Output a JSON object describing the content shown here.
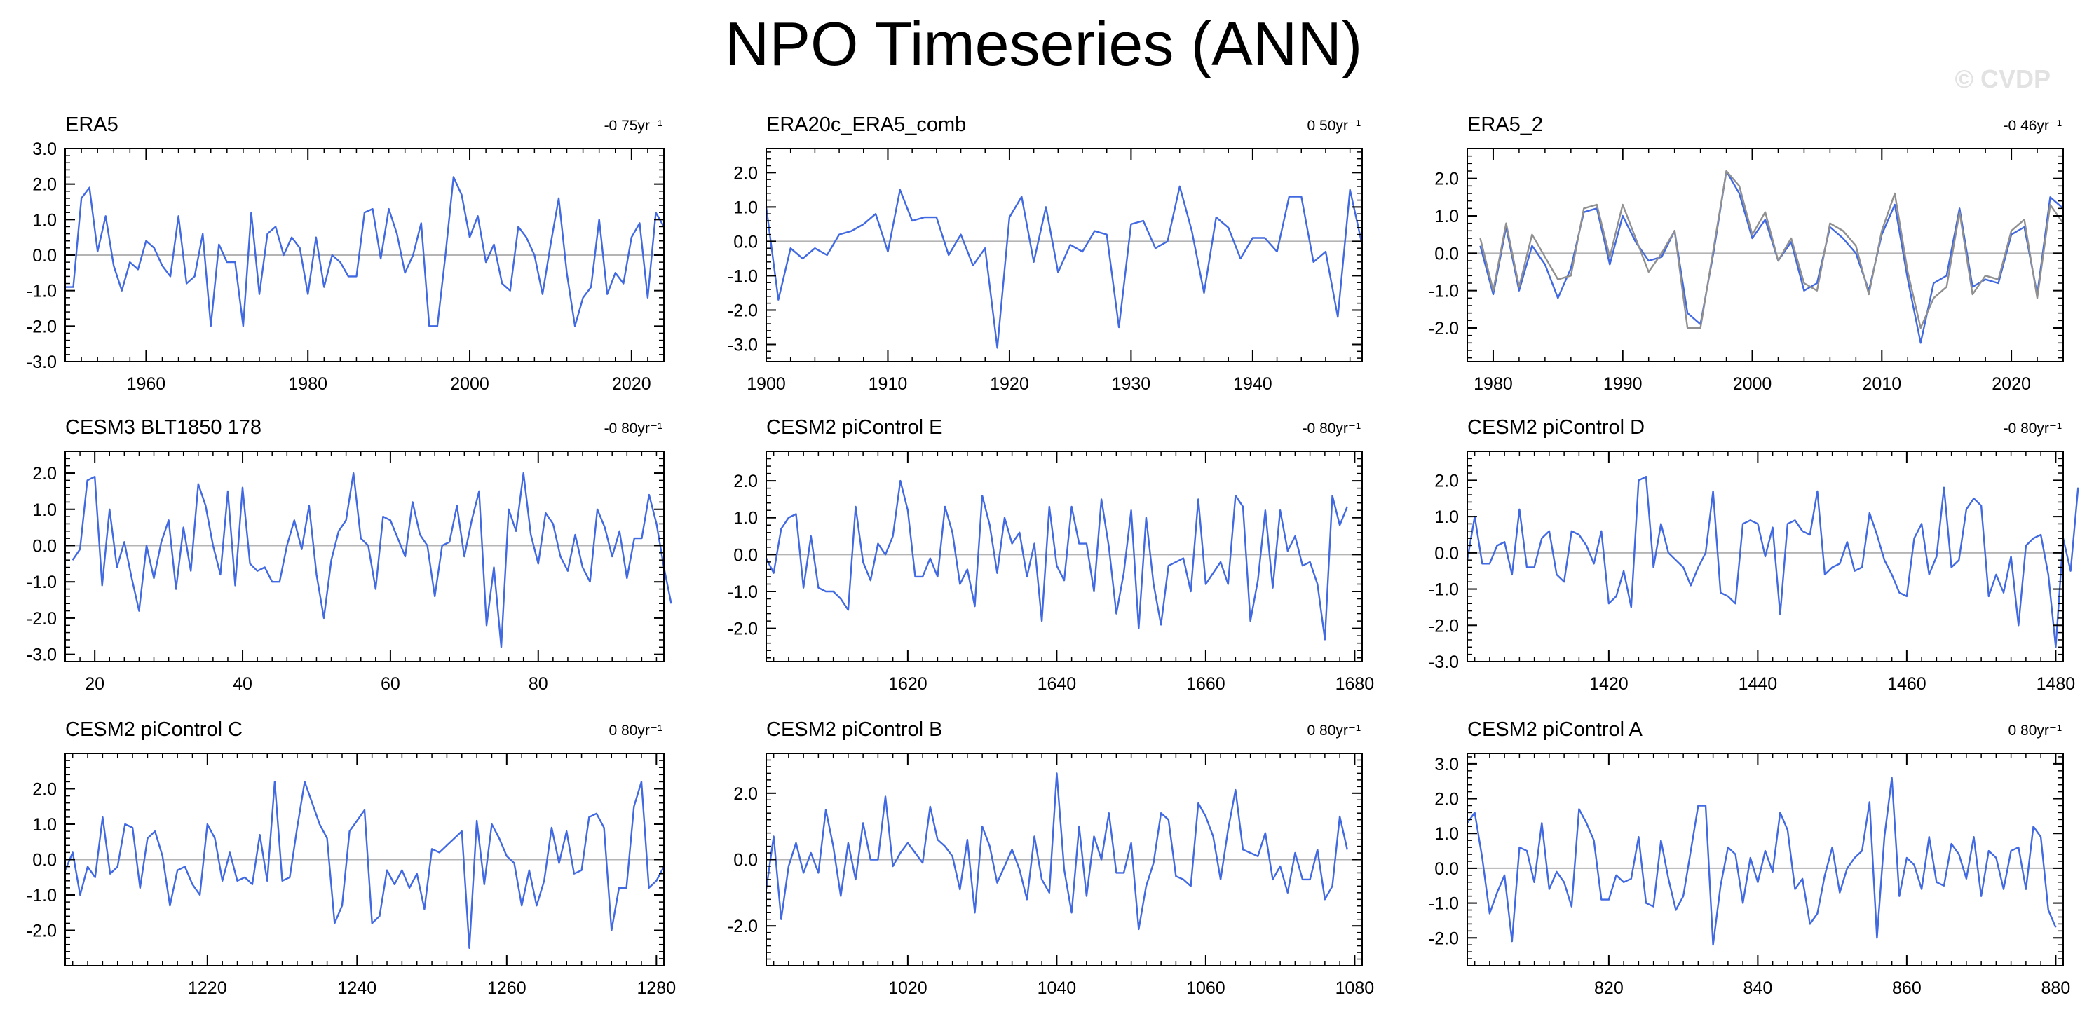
{
  "title": "NPO Timeseries (ANN)",
  "watermark": "© CVDP",
  "colors": {
    "line": "#4169e1",
    "ref_line": "#909090",
    "axis": "#000000",
    "zero": "#b4b4b4"
  },
  "chart_data": [
    {
      "type": "line",
      "title": "ERA5",
      "trend": "-0 75yr⁻¹",
      "xlim": [
        1950,
        2024
      ],
      "ylim": [
        -3.0,
        3.0
      ],
      "xticks": [
        1960,
        1980,
        2000,
        2020
      ],
      "yticks": [
        "3.0",
        "2.0",
        "1.0",
        "0.0",
        "-1.0",
        "-2.0",
        "-3.0"
      ],
      "x_start": 1950,
      "series": [
        {
          "values": [
            -0.9,
            -0.9,
            1.6,
            1.9,
            0.1,
            1.1,
            -0.3,
            -1.0,
            -0.2,
            -0.4,
            0.4,
            0.2,
            -0.3,
            -0.6,
            1.1,
            -0.8,
            -0.6,
            0.6,
            -2.0,
            0.3,
            -0.2,
            -0.2,
            -2.0,
            1.2,
            -1.1,
            0.6,
            0.8,
            0.0,
            0.5,
            0.2,
            -1.1,
            0.5,
            -0.9,
            0.0,
            -0.2,
            -0.6,
            -0.6,
            1.2,
            1.3,
            -0.1,
            1.3,
            0.6,
            -0.5,
            0.0,
            0.9,
            -2.0,
            -2.0,
            0.0,
            2.2,
            1.7,
            0.5,
            1.1,
            -0.2,
            0.3,
            -0.8,
            -1.0,
            0.8,
            0.5,
            0.0,
            -1.1,
            0.3,
            1.6,
            -0.5,
            -2.0,
            -1.2,
            -0.9,
            1.0,
            -1.1,
            -0.5,
            -0.8,
            0.5,
            0.9,
            -1.2,
            1.2,
            0.8
          ]
        }
      ]
    },
    {
      "type": "line",
      "title": "ERA20c_ERA5_comb",
      "trend": "0 50yr⁻¹",
      "xlim": [
        1900,
        1949
      ],
      "ylim": [
        -3.5,
        2.7
      ],
      "xticks": [
        1900,
        1910,
        1920,
        1930,
        1940
      ],
      "yticks": [
        "2.0",
        "1.0",
        "0.0",
        "-1.0",
        "-2.0",
        "-3.0"
      ],
      "x_start": 1900,
      "series": [
        {
          "values": [
            1.0,
            -1.7,
            -0.2,
            -0.5,
            -0.2,
            -0.4,
            0.2,
            0.3,
            0.5,
            0.8,
            -0.3,
            1.5,
            0.6,
            0.7,
            0.7,
            -0.4,
            0.2,
            -0.7,
            -0.2,
            -3.1,
            0.7,
            1.3,
            -0.6,
            1.0,
            -0.9,
            -0.1,
            -0.3,
            0.3,
            0.2,
            -2.5,
            0.5,
            0.6,
            -0.2,
            0.0,
            1.6,
            0.3,
            -1.5,
            0.7,
            0.4,
            -0.5,
            0.1,
            0.1,
            -0.3,
            1.3,
            1.3,
            -0.6,
            -0.3,
            -2.2,
            1.5,
            -0.1
          ]
        }
      ]
    },
    {
      "type": "line",
      "title": "ERA5_2",
      "trend": "-0 46yr⁻¹",
      "xlim": [
        1978,
        2024
      ],
      "ylim": [
        -2.9,
        2.8
      ],
      "xticks": [
        1980,
        1990,
        2000,
        2010,
        2020
      ],
      "yticks": [
        "2.0",
        "1.0",
        "0.0",
        "-1.0",
        "-2.0"
      ],
      "x_start": 1979,
      "series": [
        {
          "name": "",
          "values": [
            0.2,
            -1.1,
            0.7,
            -1.0,
            0.2,
            -0.3,
            -1.2,
            -0.4,
            1.1,
            1.2,
            -0.3,
            1.0,
            0.3,
            -0.2,
            -0.1,
            0.6,
            -1.6,
            -1.9,
            0.0,
            2.2,
            1.6,
            0.4,
            0.9,
            -0.2,
            0.3,
            -1.0,
            -0.8,
            0.7,
            0.4,
            0.0,
            -1.0,
            0.5,
            1.3,
            -0.7,
            -2.4,
            -0.8,
            -0.6,
            1.2,
            -0.9,
            -0.7,
            -0.8,
            0.5,
            0.7,
            -1.1,
            1.5,
            1.2
          ]
        },
        {
          "name": "",
          "values": [
            0.4,
            -1.0,
            0.8,
            -0.9,
            0.5,
            -0.1,
            -0.7,
            -0.6,
            1.2,
            1.3,
            -0.1,
            1.3,
            0.4,
            -0.5,
            0.0,
            0.6,
            -2.0,
            -2.0,
            0.1,
            2.2,
            1.8,
            0.5,
            1.1,
            -0.2,
            0.4,
            -0.8,
            -1.0,
            0.8,
            0.6,
            0.2,
            -1.1,
            0.6,
            1.6,
            -0.5,
            -2.0,
            -1.2,
            -0.9,
            1.1,
            -1.1,
            -0.6,
            -0.7,
            0.6,
            0.9,
            -1.2,
            1.3,
            0.8
          ]
        }
      ]
    },
    {
      "type": "line",
      "title": "CESM3 BLT1850 178",
      "trend": "-0 80yr⁻¹",
      "xlim": [
        16,
        97
      ],
      "ylim": [
        -3.2,
        2.6
      ],
      "xticks": [
        20,
        40,
        60,
        80
      ],
      "yticks": [
        "2.0",
        "1.0",
        "0.0",
        "-1.0",
        "-2.0",
        "-3.0"
      ],
      "x_start": 17,
      "series": [
        {
          "values": [
            -0.4,
            -0.1,
            1.8,
            1.9,
            -1.1,
            1.0,
            -0.6,
            0.1,
            -0.9,
            -1.8,
            0.0,
            -0.9,
            0.1,
            0.7,
            -1.2,
            0.5,
            -0.7,
            1.7,
            1.1,
            0.0,
            -0.8,
            1.5,
            -1.1,
            1.6,
            -0.5,
            -0.7,
            -0.6,
            -1.0,
            -1.0,
            0.0,
            0.7,
            -0.1,
            1.1,
            -0.8,
            -2.0,
            -0.4,
            0.4,
            0.7,
            2.0,
            0.2,
            0.0,
            -1.2,
            0.8,
            0.7,
            0.2,
            -0.3,
            1.2,
            0.3,
            0.0,
            -1.4,
            0.0,
            0.1,
            1.1,
            -0.3,
            0.7,
            1.5,
            -2.2,
            -0.6,
            -2.8,
            1.0,
            0.4,
            2.0,
            0.3,
            -0.5,
            0.9,
            0.6,
            -0.3,
            -0.7,
            0.3,
            -0.6,
            -1.0,
            1.0,
            0.5,
            -0.3,
            0.4,
            -0.9,
            0.2,
            0.2,
            1.4,
            0.6,
            -0.6,
            -1.6
          ]
        }
      ]
    },
    {
      "type": "line",
      "title": "CESM2 piControl E",
      "trend": "-0 80yr⁻¹",
      "xlim": [
        1601,
        1681
      ],
      "ylim": [
        -2.9,
        2.8
      ],
      "xticks": [
        1620,
        1640,
        1660,
        1680
      ],
      "yticks": [
        "2.0",
        "1.0",
        "0.0",
        "-1.0",
        "-2.0"
      ],
      "x_start": 1601,
      "series": [
        {
          "values": [
            -0.1,
            -0.5,
            0.7,
            1.0,
            1.1,
            -0.9,
            0.5,
            -0.9,
            -1.0,
            -1.0,
            -1.2,
            -1.5,
            1.3,
            -0.2,
            -0.7,
            0.3,
            0.0,
            0.5,
            2.0,
            1.2,
            -0.6,
            -0.6,
            -0.1,
            -0.6,
            1.3,
            0.6,
            -0.8,
            -0.4,
            -1.4,
            1.6,
            0.8,
            -0.5,
            1.0,
            0.3,
            0.6,
            -0.6,
            0.3,
            -1.8,
            1.3,
            -0.3,
            -0.7,
            1.3,
            0.3,
            0.3,
            -1.0,
            1.5,
            0.2,
            -1.6,
            -0.5,
            1.2,
            -2.0,
            1.0,
            -0.8,
            -1.9,
            -0.3,
            -0.2,
            -0.1,
            -1.0,
            1.5,
            -0.8,
            -0.5,
            -0.2,
            -0.8,
            1.6,
            1.3,
            -1.8,
            -0.7,
            1.2,
            -0.9,
            1.2,
            0.1,
            0.5,
            -0.3,
            -0.2,
            -0.8,
            -2.3,
            1.6,
            0.8,
            1.3
          ]
        }
      ]
    },
    {
      "type": "line",
      "title": "CESM2 piControl D",
      "trend": "-0 80yr⁻¹",
      "xlim": [
        1401,
        1481
      ],
      "ylim": [
        -3.0,
        2.8
      ],
      "xticks": [
        1420,
        1440,
        1460,
        1480
      ],
      "yticks": [
        "2.0",
        "1.0",
        "0.0",
        "-1.0",
        "-2.0",
        "-3.0"
      ],
      "x_start": 1401,
      "series": [
        {
          "values": [
            -0.2,
            1.0,
            -0.3,
            -0.3,
            0.2,
            0.3,
            -0.6,
            1.2,
            -0.4,
            -0.4,
            0.4,
            0.6,
            -0.6,
            -0.8,
            0.6,
            0.5,
            0.2,
            -0.3,
            0.6,
            -1.4,
            -1.2,
            -0.5,
            -1.5,
            2.0,
            2.1,
            -0.4,
            0.8,
            0.0,
            -0.2,
            -0.4,
            -0.9,
            -0.4,
            0.0,
            1.7,
            -1.1,
            -1.2,
            -1.4,
            0.8,
            0.9,
            0.8,
            -0.1,
            0.7,
            -1.7,
            0.8,
            0.9,
            0.6,
            0.5,
            1.7,
            -0.6,
            -0.4,
            -0.3,
            0.3,
            -0.5,
            -0.4,
            1.1,
            0.5,
            -0.2,
            -0.6,
            -1.1,
            -1.2,
            0.4,
            0.8,
            -0.6,
            -0.1,
            1.8,
            -0.4,
            -0.2,
            1.2,
            1.5,
            1.3,
            -1.2,
            -0.6,
            -1.1,
            -0.1,
            -2.0,
            0.2,
            0.4,
            0.5,
            -0.6,
            -2.6,
            0.4,
            -0.5,
            1.8
          ]
        }
      ]
    },
    {
      "type": "line",
      "title": "CESM2 piControl C",
      "trend": "0 80yr⁻¹",
      "xlim": [
        1201,
        1281
      ],
      "ylim": [
        -3.0,
        3.0
      ],
      "xticks": [
        1220,
        1240,
        1260,
        1280
      ],
      "yticks": [
        "2.0",
        "1.0",
        "0.0",
        "-1.0",
        "-2.0"
      ],
      "x_start": 1201,
      "series": [
        {
          "values": [
            -0.3,
            0.2,
            -1.0,
            -0.2,
            -0.5,
            1.2,
            -0.4,
            -0.2,
            1.0,
            0.9,
            -0.8,
            0.6,
            0.8,
            0.1,
            -1.3,
            -0.3,
            -0.2,
            -0.7,
            -1.0,
            1.0,
            0.6,
            -0.6,
            0.2,
            -0.6,
            -0.5,
            -0.7,
            0.7,
            -0.6,
            2.2,
            -0.6,
            -0.5,
            0.9,
            2.2,
            1.6,
            1.0,
            0.6,
            -1.8,
            -1.3,
            0.8,
            1.1,
            1.4,
            -1.8,
            -1.6,
            -0.3,
            -0.7,
            -0.3,
            -0.8,
            -0.4,
            -1.4,
            0.3,
            0.2,
            0.4,
            0.6,
            0.8,
            -2.5,
            1.1,
            -0.7,
            1.0,
            0.6,
            0.1,
            -0.1,
            -1.3,
            -0.3,
            -1.3,
            -0.6,
            0.9,
            -0.1,
            0.8,
            -0.4,
            -0.3,
            1.2,
            1.3,
            0.9,
            -2.0,
            -0.8,
            -0.8,
            1.5,
            2.2,
            -0.8,
            -0.6,
            -0.2
          ]
        }
      ]
    },
    {
      "type": "line",
      "title": "CESM2 piControl B",
      "trend": "0 80yr⁻¹",
      "xlim": [
        1001,
        1081
      ],
      "ylim": [
        -3.2,
        3.2
      ],
      "xticks": [
        1020,
        1040,
        1060,
        1080
      ],
      "yticks": [
        "2.0",
        "0.0",
        "-2.0"
      ],
      "x_start": 1001,
      "series": [
        {
          "values": [
            -0.9,
            0.7,
            -1.8,
            -0.2,
            0.5,
            -0.4,
            0.2,
            -0.4,
            1.5,
            0.4,
            -1.1,
            0.5,
            -0.6,
            1.1,
            0.0,
            0.0,
            1.9,
            -0.2,
            0.2,
            0.5,
            0.2,
            -0.1,
            1.6,
            0.6,
            0.4,
            0.1,
            -0.9,
            0.6,
            -1.6,
            1.0,
            0.4,
            -0.7,
            -0.2,
            0.3,
            -0.3,
            -1.2,
            0.7,
            -0.6,
            -1.0,
            2.6,
            -0.3,
            -1.6,
            1.0,
            -1.1,
            0.7,
            0.0,
            1.4,
            -0.4,
            -0.4,
            0.5,
            -2.1,
            -0.8,
            -0.1,
            1.4,
            1.2,
            -0.5,
            -0.6,
            -0.8,
            1.7,
            1.3,
            0.7,
            -0.6,
            0.9,
            2.1,
            0.3,
            0.2,
            0.1,
            0.8,
            -0.6,
            -0.2,
            -1.0,
            0.2,
            -0.6,
            -0.6,
            0.3,
            -1.2,
            -0.8,
            1.3,
            0.3
          ]
        }
      ]
    },
    {
      "type": "line",
      "title": "CESM2 piControl A",
      "trend": "0 80yr⁻¹",
      "xlim": [
        801,
        881
      ],
      "ylim": [
        -2.8,
        3.3
      ],
      "xticks": [
        820,
        840,
        860,
        880
      ],
      "yticks": [
        "3.0",
        "2.0",
        "1.0",
        "0.0",
        "-1.0",
        "-2.0"
      ],
      "x_start": 801,
      "series": [
        {
          "values": [
            1.3,
            1.6,
            0.3,
            -1.3,
            -0.7,
            -0.2,
            -2.1,
            0.6,
            0.5,
            -0.4,
            1.3,
            -0.6,
            -0.1,
            -0.4,
            -1.1,
            1.7,
            1.3,
            0.8,
            -0.9,
            -0.9,
            -0.2,
            -0.4,
            -0.3,
            0.9,
            -1.0,
            -1.1,
            0.8,
            -0.3,
            -1.2,
            -0.8,
            0.5,
            1.8,
            1.8,
            -2.2,
            -0.5,
            0.6,
            0.4,
            -1.0,
            0.3,
            -0.4,
            0.5,
            -0.1,
            1.6,
            1.1,
            -0.6,
            -0.3,
            -1.6,
            -1.3,
            -0.2,
            0.6,
            -0.7,
            0.0,
            0.3,
            0.5,
            1.9,
            -2.0,
            0.9,
            2.6,
            -0.8,
            0.3,
            0.1,
            -0.6,
            0.9,
            -0.4,
            -0.5,
            0.7,
            0.4,
            -0.3,
            0.9,
            -0.8,
            0.5,
            0.3,
            -0.6,
            0.5,
            0.6,
            -0.6,
            1.2,
            0.9,
            -1.2,
            -1.7
          ]
        }
      ]
    }
  ]
}
